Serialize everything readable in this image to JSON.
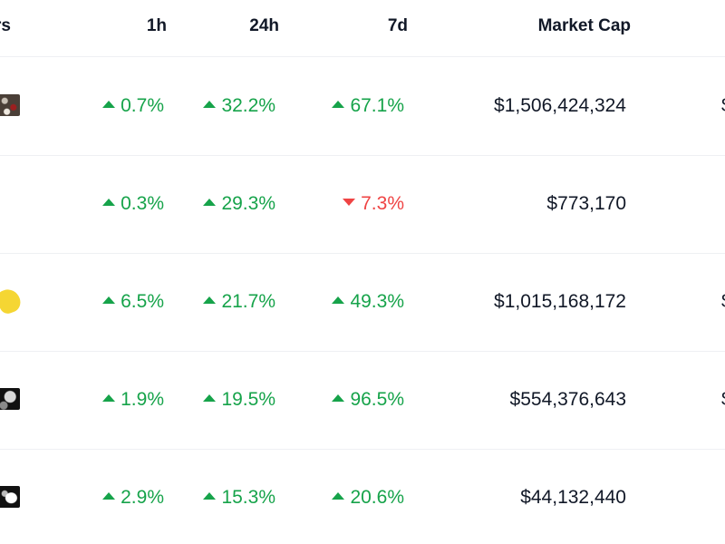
{
  "header": {
    "left_partial": "rs",
    "col_1h": "1h",
    "col_24h": "24h",
    "col_7d": "7d",
    "col_mcap": "Market Cap"
  },
  "colors": {
    "up": "#16a34a",
    "down": "#ef4444",
    "text": "#111827",
    "divider": "#eef0f3"
  },
  "rows": [
    {
      "icon": "coin-logo-icon",
      "h1": "0.7%",
      "h1_dir": "up",
      "h24": "32.2%",
      "h24_dir": "up",
      "d7": "67.1%",
      "d7_dir": "up",
      "mcap": "$1,506,424,324",
      "edge": "$"
    },
    {
      "icon": "",
      "h1": "0.3%",
      "h1_dir": "up",
      "h24": "29.3%",
      "h24_dir": "up",
      "d7": "7.3%",
      "d7_dir": "down",
      "mcap": "$773,170",
      "edge": ""
    },
    {
      "icon": "coin-logo-icon",
      "h1": "6.5%",
      "h1_dir": "up",
      "h24": "21.7%",
      "h24_dir": "up",
      "d7": "49.3%",
      "d7_dir": "up",
      "mcap": "$1,015,168,172",
      "edge": "$"
    },
    {
      "icon": "coin-logo-icon",
      "h1": "1.9%",
      "h1_dir": "up",
      "h24": "19.5%",
      "h24_dir": "up",
      "d7": "96.5%",
      "d7_dir": "up",
      "mcap": "$554,376,643",
      "edge": "$"
    },
    {
      "icon": "coin-logo-icon",
      "h1": "2.9%",
      "h1_dir": "up",
      "h24": "15.3%",
      "h24_dir": "up",
      "d7": "20.6%",
      "d7_dir": "up",
      "mcap": "$44,132,440",
      "edge": ""
    }
  ]
}
